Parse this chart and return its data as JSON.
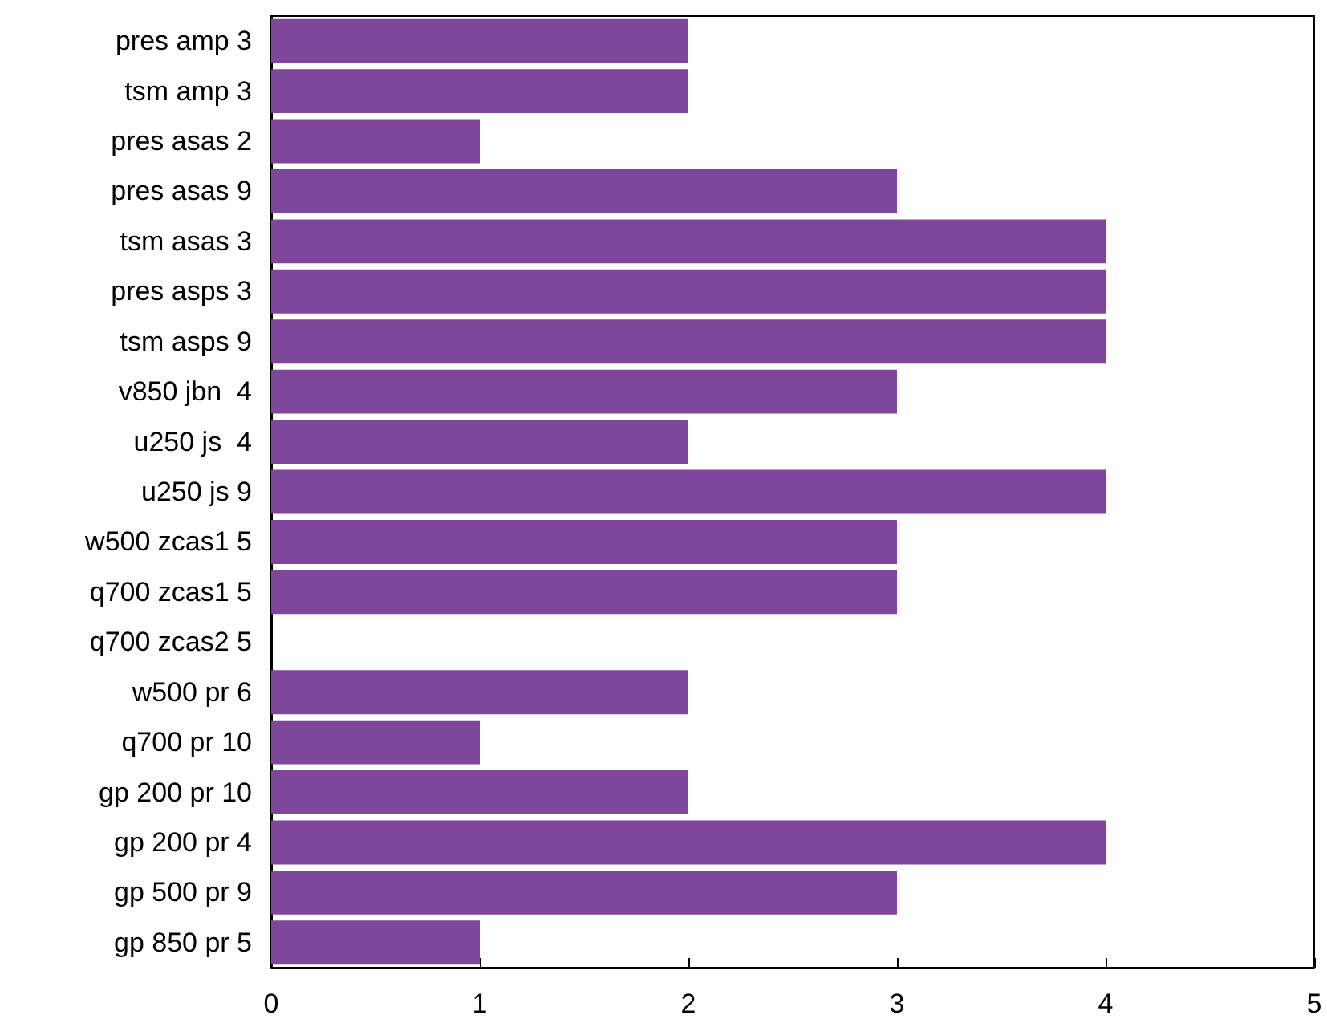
{
  "chart_data": {
    "type": "bar",
    "orientation": "horizontal",
    "categories": [
      "pres amp 3",
      "tsm amp 3",
      "pres asas 2",
      "pres asas 9",
      "tsm asas 3",
      "pres asps 3",
      "tsm asps 9",
      "v850 jbn  4",
      "u250 js  4",
      "u250 js 9",
      "w500 zcas1 5",
      "q700 zcas1 5",
      "q700 zcas2 5",
      "w500 pr 6",
      "q700 pr 10",
      "gp 200 pr 10",
      "gp 200 pr 4",
      "gp 500 pr 9",
      "gp 850 pr 5"
    ],
    "values": [
      2,
      2,
      1,
      3,
      4,
      4,
      4,
      3,
      2,
      4,
      3,
      3,
      0,
      2,
      1,
      2,
      4,
      3,
      1
    ],
    "color": "#7f479b",
    "xlim": [
      0,
      5
    ],
    "xticks": [
      0,
      1,
      2,
      3,
      4,
      5
    ],
    "grid": false
  }
}
